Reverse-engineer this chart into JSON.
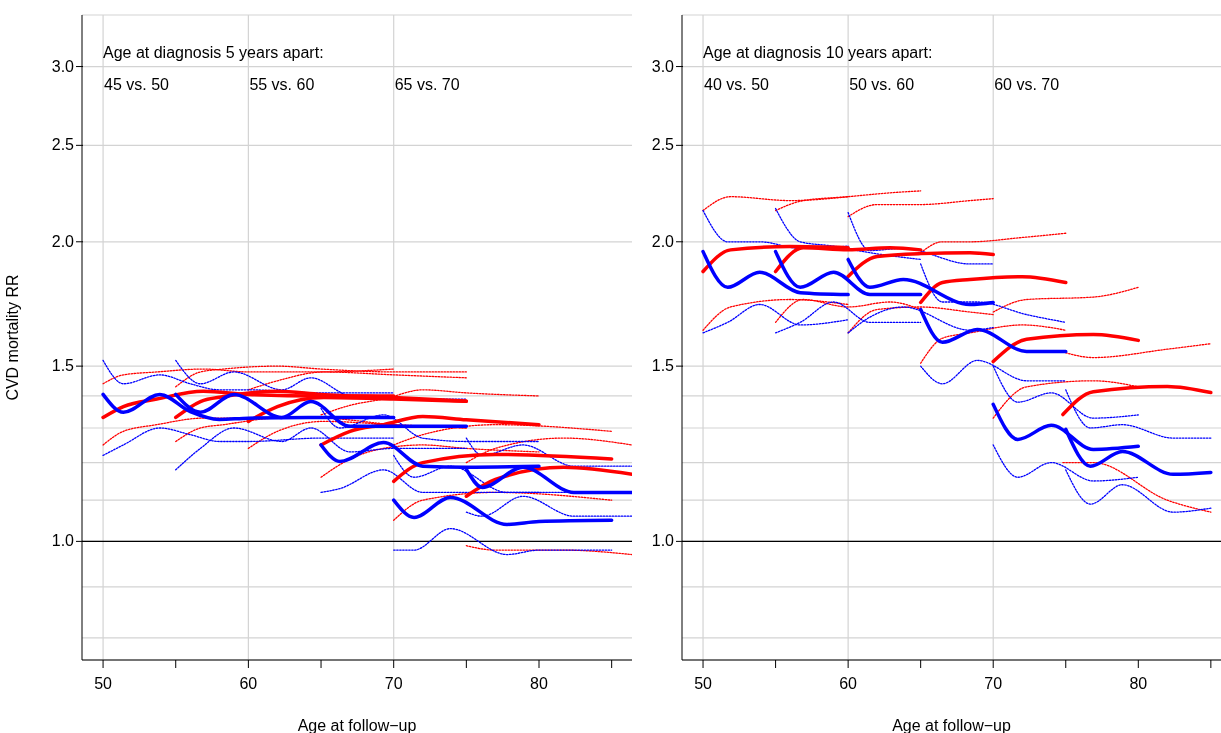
{
  "chart_data": [
    {
      "type": "line",
      "ylabel": "CVD mortality RR",
      "xlabel": "Age at follow−up",
      "annotations": [
        "Age at diagnosis 5 years apart:"
      ],
      "log": "y",
      "grid": "y",
      "legend": false,
      "xlim": [
        48.55,
        86.4
      ],
      "ylim": [
        0.76,
        3.38
      ],
      "xticks": [
        50,
        {
          "value": 55,
          "label": null
        },
        60,
        {
          "value": 65,
          "label": null
        },
        70,
        {
          "value": 75,
          "label": null
        },
        80,
        {
          "value": 85,
          "label": null
        }
      ],
      "yticks": [
        {
          "value": 0.8,
          "label": null
        },
        {
          "value": 0.9,
          "label": null
        },
        {
          "value": 1,
          "label": "1.0"
        },
        {
          "value": 1.1,
          "label": null
        },
        {
          "value": 1.2,
          "label": null
        },
        {
          "value": 1.3,
          "label": null
        },
        {
          "value": 1.4,
          "label": null
        },
        {
          "value": 1.5,
          "label": "1.5"
        },
        {
          "value": 2,
          "label": "2.0"
        },
        {
          "value": 2.5,
          "label": "2.5"
        },
        {
          "value": 3,
          "label": "3.0"
        }
      ],
      "ref_lines": [
        {
          "axis": "x",
          "value": 50,
          "label": "45 vs. 50",
          "color": "#d3d3d3"
        },
        {
          "axis": "x",
          "value": 60,
          "label": "55 vs. 60",
          "color": "#d3d3d3"
        },
        {
          "axis": "x",
          "value": 70,
          "label": "65 vs. 70",
          "color": "#d3d3d3"
        },
        {
          "axis": "y",
          "value": 1,
          "color": "#000000"
        }
      ],
      "series": [
        {
          "color": "#ff0000",
          "line_style": "dotted",
          "x": [
            50,
            51.4,
            53.7,
            56.9,
            60,
            65,
            70
          ],
          "values": [
            1.44,
            1.47,
            1.48,
            1.49,
            1.48,
            1.48,
            1.49
          ]
        },
        {
          "color": "#ff0000",
          "line_style": "dotted",
          "x": [
            50,
            51.4,
            53.7,
            56.9,
            60,
            65,
            70
          ],
          "values": [
            1.25,
            1.29,
            1.31,
            1.33,
            1.33,
            1.33,
            1.33
          ]
        },
        {
          "color": "#ff0000",
          "line_style": "dotted",
          "x": [
            55,
            56.7,
            58.3,
            62,
            65,
            70,
            75
          ],
          "values": [
            1.43,
            1.48,
            1.49,
            1.5,
            1.49,
            1.48,
            1.48
          ]
        },
        {
          "color": "#ff0000",
          "line_style": "dotted",
          "x": [
            55,
            56.7,
            58.3,
            62,
            65,
            70,
            75
          ],
          "values": [
            1.26,
            1.3,
            1.31,
            1.33,
            1.33,
            1.31,
            1.3
          ]
        },
        {
          "color": "#ff0000",
          "line_style": "dotted",
          "x": [
            60,
            62,
            65.2,
            70,
            75
          ],
          "values": [
            1.42,
            1.45,
            1.48,
            1.47,
            1.46
          ]
        },
        {
          "color": "#ff0000",
          "line_style": "dotted",
          "x": [
            60,
            62,
            65.2,
            70,
            75
          ],
          "values": [
            1.24,
            1.29,
            1.32,
            1.31,
            1.3
          ]
        },
        {
          "color": "#ff0000",
          "line_style": "dotted",
          "x": [
            65,
            67,
            69.3,
            72,
            75,
            80
          ],
          "values": [
            1.34,
            1.37,
            1.39,
            1.42,
            1.41,
            1.4
          ]
        },
        {
          "color": "#ff0000",
          "line_style": "dotted",
          "x": [
            65,
            67,
            69.3,
            72,
            75,
            80
          ],
          "values": [
            1.16,
            1.21,
            1.24,
            1.25,
            1.24,
            1.23
          ]
        },
        {
          "color": "#ff0000",
          "line_style": "dotted",
          "x": [
            70,
            72,
            77,
            85
          ],
          "values": [
            1.25,
            1.28,
            1.31,
            1.29
          ]
        },
        {
          "color": "#ff0000",
          "line_style": "dotted",
          "x": [
            70,
            72,
            77,
            85
          ],
          "values": [
            1.05,
            1.1,
            1.12,
            1.1
          ]
        },
        {
          "color": "#ff0000",
          "line_style": "dotted",
          "x": [
            75,
            77,
            81.7,
            86.4
          ],
          "values": [
            1.2,
            1.24,
            1.27,
            1.25
          ]
        },
        {
          "color": "#ff0000",
          "line_style": "dotted",
          "x": [
            75,
            77,
            81.7,
            86.4
          ],
          "values": [
            0.99,
            0.98,
            0.98,
            0.97
          ]
        },
        {
          "color": "#0000ff",
          "line_style": "dotted",
          "x": [
            50,
            51.4,
            53.9,
            56,
            58,
            60,
            65,
            70
          ],
          "values": [
            1.52,
            1.44,
            1.47,
            1.44,
            1.42,
            1.42,
            1.41,
            1.41
          ]
        },
        {
          "color": "#0000ff",
          "line_style": "dotted",
          "x": [
            50,
            51.4,
            53.9,
            56,
            58,
            60,
            65,
            70
          ],
          "values": [
            1.22,
            1.25,
            1.3,
            1.28,
            1.26,
            1.26,
            1.27,
            1.27
          ]
        },
        {
          "color": "#0000ff",
          "line_style": "dotted",
          "x": [
            55,
            56.7,
            59,
            62.3,
            64.3,
            67,
            70,
            75
          ],
          "values": [
            1.52,
            1.44,
            1.48,
            1.42,
            1.46,
            1.4,
            1.39,
            1.39
          ]
        },
        {
          "color": "#0000ff",
          "line_style": "dotted",
          "x": [
            55,
            56.7,
            59,
            62.3,
            64.3,
            67,
            70,
            75
          ],
          "values": [
            1.18,
            1.24,
            1.3,
            1.26,
            1.3,
            1.23,
            1.24,
            1.24
          ]
        },
        {
          "color": "#0000ff",
          "line_style": "dotted",
          "x": [
            65,
            66.3,
            69.3,
            72,
            75,
            80
          ],
          "values": [
            1.36,
            1.3,
            1.34,
            1.27,
            1.26,
            1.26
          ]
        },
        {
          "color": "#0000ff",
          "line_style": "dotted",
          "x": [
            65,
            66.3,
            69.3,
            72,
            75,
            80
          ],
          "values": [
            1.12,
            1.13,
            1.18,
            1.12,
            1.12,
            1.12
          ]
        },
        {
          "color": "#0000ff",
          "line_style": "dotted",
          "x": [
            70,
            71.4,
            73.9,
            77.8,
            80,
            85
          ],
          "values": [
            1.22,
            1.16,
            1.19,
            1.12,
            1.12,
            1.12
          ]
        },
        {
          "color": "#0000ff",
          "line_style": "dotted",
          "x": [
            70,
            71.4,
            73.9,
            77.8,
            80,
            85
          ],
          "values": [
            0.98,
            0.98,
            1.03,
            0.97,
            0.98,
            0.98
          ]
        },
        {
          "color": "#0000ff",
          "line_style": "dotted",
          "x": [
            75,
            76.1,
            78.9,
            82.4,
            86.4
          ],
          "values": [
            1.27,
            1.22,
            1.25,
            1.19,
            1.19
          ]
        },
        {
          "color": "#0000ff",
          "line_style": "dotted",
          "x": [
            75,
            76.1,
            78.9,
            82.4,
            86.4
          ],
          "values": [
            1.07,
            1.06,
            1.11,
            1.06,
            1.06
          ]
        },
        {
          "color": "#ff0000",
          "x": [
            50,
            51.4,
            53.7,
            56.9,
            60,
            65,
            70
          ],
          "values": [
            1.332,
            1.366,
            1.39,
            1.415,
            1.405,
            1.4,
            1.4
          ]
        },
        {
          "color": "#ff0000",
          "x": [
            55,
            56.7,
            58.3,
            62,
            65,
            70,
            75
          ],
          "values": [
            1.332,
            1.382,
            1.398,
            1.415,
            1.405,
            1.395,
            1.383
          ]
        },
        {
          "color": "#ff0000",
          "x": [
            60,
            62,
            65.2,
            70,
            75
          ],
          "values": [
            1.32,
            1.366,
            1.395,
            1.39,
            1.383
          ]
        },
        {
          "color": "#ff0000",
          "x": [
            65,
            67,
            69.3,
            72,
            75,
            80
          ],
          "values": [
            1.25,
            1.29,
            1.31,
            1.335,
            1.325,
            1.31
          ]
        },
        {
          "color": "#ff0000",
          "x": [
            70,
            72,
            77,
            85
          ],
          "values": [
            1.149,
            1.2,
            1.223,
            1.21
          ]
        },
        {
          "color": "#ff0000",
          "x": [
            75,
            77,
            81.7,
            86.4
          ],
          "values": [
            1.11,
            1.154,
            1.187,
            1.168
          ]
        },
        {
          "color": "#0000ff",
          "x": [
            50,
            51.4,
            53.9,
            56,
            58,
            60,
            65,
            70
          ],
          "values": [
            1.405,
            1.348,
            1.405,
            1.35,
            1.326,
            1.33,
            1.332,
            1.332
          ]
        },
        {
          "color": "#0000ff",
          "x": [
            55,
            56.7,
            59,
            62.3,
            64.3,
            67,
            70,
            75
          ],
          "values": [
            1.405,
            1.348,
            1.405,
            1.332,
            1.382,
            1.305,
            1.305,
            1.305
          ]
        },
        {
          "color": "#0000ff",
          "x": [
            65,
            66.3,
            69.3,
            72,
            75,
            80
          ],
          "values": [
            1.25,
            1.203,
            1.257,
            1.19,
            1.187,
            1.19
          ]
        },
        {
          "color": "#0000ff",
          "x": [
            70,
            71.4,
            73.9,
            77.8,
            80,
            85
          ],
          "values": [
            1.1,
            1.057,
            1.107,
            1.04,
            1.047,
            1.05
          ]
        },
        {
          "color": "#0000ff",
          "x": [
            75,
            76.1,
            78.9,
            82.4,
            86.4
          ],
          "values": [
            1.181,
            1.133,
            1.187,
            1.12,
            1.12
          ]
        }
      ]
    },
    {
      "type": "line",
      "xlabel": "Age at follow−up",
      "annotations": [
        "Age at diagnosis 10 years apart:"
      ],
      "log": "y",
      "grid": "y",
      "legend": false,
      "xlim": [
        48.55,
        85.7
      ],
      "ylim": [
        0.76,
        3.38
      ],
      "xticks": [
        50,
        {
          "value": 55,
          "label": null
        },
        60,
        {
          "value": 65,
          "label": null
        },
        70,
        {
          "value": 75,
          "label": null
        },
        80,
        {
          "value": 85,
          "label": null
        }
      ],
      "yticks": [
        {
          "value": 0.8,
          "label": null
        },
        {
          "value": 0.9,
          "label": null
        },
        {
          "value": 1,
          "label": "1.0"
        },
        {
          "value": 1.1,
          "label": null
        },
        {
          "value": 1.2,
          "label": null
        },
        {
          "value": 1.3,
          "label": null
        },
        {
          "value": 1.4,
          "label": null
        },
        {
          "value": 1.5,
          "label": "1.5"
        },
        {
          "value": 2,
          "label": "2.0"
        },
        {
          "value": 2.5,
          "label": "2.5"
        },
        {
          "value": 3,
          "label": "3.0"
        }
      ],
      "ref_lines": [
        {
          "axis": "x",
          "value": 50,
          "label": "40 vs. 50",
          "color": "#d3d3d3"
        },
        {
          "axis": "x",
          "value": 60,
          "label": "50 vs. 60",
          "color": "#d3d3d3"
        },
        {
          "axis": "x",
          "value": 70,
          "label": "60 vs. 70",
          "color": "#d3d3d3"
        },
        {
          "axis": "y",
          "value": 1,
          "color": "#000000"
        }
      ],
      "series": [
        {
          "color": "#ff0000",
          "line_style": "dotted",
          "x": [
            50,
            51.9,
            56,
            60
          ],
          "values": [
            2.15,
            2.22,
            2.2,
            2.22
          ]
        },
        {
          "color": "#ff0000",
          "line_style": "dotted",
          "x": [
            50,
            51.9,
            56,
            60
          ],
          "values": [
            1.63,
            1.72,
            1.75,
            1.73
          ]
        },
        {
          "color": "#ff0000",
          "line_style": "dotted",
          "x": [
            55,
            56.9,
            60,
            62.9,
            65
          ],
          "values": [
            2.15,
            2.2,
            2.22,
            2.24,
            2.25
          ]
        },
        {
          "color": "#ff0000",
          "line_style": "dotted",
          "x": [
            55,
            56.9,
            60,
            62.9,
            65
          ],
          "values": [
            1.66,
            1.75,
            1.72,
            1.74,
            1.71
          ]
        },
        {
          "color": "#ff0000",
          "line_style": "dotted",
          "x": [
            60,
            62,
            65,
            68.4,
            70
          ],
          "values": [
            2.12,
            2.18,
            2.18,
            2.2,
            2.21
          ]
        },
        {
          "color": "#ff0000",
          "line_style": "dotted",
          "x": [
            60,
            62,
            65,
            68.4,
            70
          ],
          "values": [
            1.62,
            1.71,
            1.72,
            1.7,
            1.69
          ]
        },
        {
          "color": "#ff0000",
          "line_style": "dotted",
          "x": [
            65,
            66.5,
            68.4,
            72,
            75
          ],
          "values": [
            1.95,
            2,
            2,
            2.02,
            2.04
          ]
        },
        {
          "color": "#ff0000",
          "line_style": "dotted",
          "x": [
            65,
            66.5,
            68.4,
            72,
            75
          ],
          "values": [
            1.51,
            1.6,
            1.62,
            1.65,
            1.63
          ]
        },
        {
          "color": "#ff0000",
          "line_style": "dotted",
          "x": [
            70,
            72.3,
            76.9,
            80
          ],
          "values": [
            1.7,
            1.75,
            1.76,
            1.8
          ]
        },
        {
          "color": "#ff0000",
          "line_style": "dotted",
          "x": [
            70,
            72.3,
            76.9,
            80
          ],
          "values": [
            1.33,
            1.43,
            1.45,
            1.43
          ]
        },
        {
          "color": "#ff0000",
          "line_style": "dotted",
          "x": [
            74.8,
            76.9,
            82,
            85
          ],
          "values": [
            1.55,
            1.53,
            1.56,
            1.58
          ]
        },
        {
          "color": "#ff0000",
          "line_style": "dotted",
          "x": [
            74.8,
            76.9,
            82,
            85
          ],
          "values": [
            1.2,
            1.2,
            1.1,
            1.07
          ]
        },
        {
          "color": "#0000ff",
          "line_style": "dotted",
          "x": [
            50,
            51.7,
            53.9,
            56.7,
            60
          ],
          "values": [
            2.15,
            2,
            2,
            1.97,
            1.98
          ]
        },
        {
          "color": "#0000ff",
          "line_style": "dotted",
          "x": [
            50,
            51.7,
            53.9,
            56.7,
            60
          ],
          "values": [
            1.62,
            1.66,
            1.73,
            1.65,
            1.67
          ]
        },
        {
          "color": "#0000ff",
          "line_style": "dotted",
          "x": [
            55,
            56.7,
            59,
            61.5,
            65
          ],
          "values": [
            2.16,
            2,
            1.98,
            1.95,
            1.92
          ]
        },
        {
          "color": "#0000ff",
          "line_style": "dotted",
          "x": [
            55,
            56.7,
            59,
            61.5,
            65
          ],
          "values": [
            1.62,
            1.66,
            1.74,
            1.66,
            1.66
          ]
        },
        {
          "color": "#0000ff",
          "line_style": "dotted",
          "x": [
            60,
            61.5,
            63.8,
            68.4,
            70
          ],
          "values": [
            2.14,
            1.96,
            1.97,
            1.9,
            1.9
          ]
        },
        {
          "color": "#0000ff",
          "line_style": "dotted",
          "x": [
            60,
            61.5,
            63.8,
            68.4,
            70
          ],
          "values": [
            1.62,
            1.68,
            1.72,
            1.63,
            1.64
          ]
        },
        {
          "color": "#0000ff",
          "line_style": "dotted",
          "x": [
            65,
            66.5,
            68.9,
            72.3,
            75
          ],
          "values": [
            1.9,
            1.74,
            1.74,
            1.69,
            1.66
          ]
        },
        {
          "color": "#0000ff",
          "line_style": "dotted",
          "x": [
            65,
            66.5,
            68.9,
            72.3,
            75
          ],
          "values": [
            1.5,
            1.44,
            1.52,
            1.45,
            1.45
          ]
        },
        {
          "color": "#0000ff",
          "line_style": "dotted",
          "x": [
            70,
            71.7,
            74,
            76.9,
            80
          ],
          "values": [
            1.5,
            1.38,
            1.41,
            1.33,
            1.34
          ]
        },
        {
          "color": "#0000ff",
          "line_style": "dotted",
          "x": [
            70,
            71.7,
            74,
            76.9,
            80
          ],
          "values": [
            1.25,
            1.16,
            1.2,
            1.15,
            1.16
          ]
        },
        {
          "color": "#0000ff",
          "line_style": "dotted",
          "x": [
            75,
            76.7,
            78.9,
            82.4,
            85
          ],
          "values": [
            1.42,
            1.3,
            1.31,
            1.27,
            1.27
          ]
        },
        {
          "color": "#0000ff",
          "line_style": "dotted",
          "x": [
            75,
            76.7,
            78.9,
            82.4,
            85
          ],
          "values": [
            1.18,
            1.09,
            1.14,
            1.07,
            1.08
          ]
        },
        {
          "color": "#ff0000",
          "x": [
            50,
            51.9,
            56,
            60
          ],
          "values": [
            1.867,
            1.963,
            1.978,
            1.973
          ]
        },
        {
          "color": "#ff0000",
          "x": [
            55,
            56.9,
            60,
            62.9,
            65
          ],
          "values": [
            1.867,
            1.973,
            1.963,
            1.973,
            1.963
          ]
        },
        {
          "color": "#ff0000",
          "x": [
            60,
            62,
            65,
            68.4,
            70
          ],
          "values": [
            1.846,
            1.933,
            1.946,
            1.95,
            1.942
          ]
        },
        {
          "color": "#ff0000",
          "x": [
            65,
            66.5,
            68.4,
            72,
            75
          ],
          "values": [
            1.738,
            1.82,
            1.833,
            1.845,
            1.82
          ]
        },
        {
          "color": "#ff0000",
          "x": [
            70,
            72.3,
            76.9,
            80
          ],
          "values": [
            1.516,
            1.596,
            1.614,
            1.592
          ]
        },
        {
          "color": "#ff0000",
          "x": [
            74.8,
            76.9,
            82,
            85
          ],
          "values": [
            1.341,
            1.414,
            1.431,
            1.411
          ]
        },
        {
          "color": "#0000ff",
          "x": [
            50,
            51.7,
            53.9,
            56.7,
            60
          ],
          "values": [
            1.955,
            1.8,
            1.864,
            1.778,
            1.77
          ]
        },
        {
          "color": "#0000ff",
          "x": [
            55,
            56.7,
            59,
            61.5,
            65
          ],
          "values": [
            1.955,
            1.8,
            1.864,
            1.77,
            1.77
          ]
        },
        {
          "color": "#0000ff",
          "x": [
            60,
            61.5,
            63.8,
            68.4,
            70
          ],
          "values": [
            1.92,
            1.8,
            1.833,
            1.73,
            1.738
          ]
        },
        {
          "color": "#0000ff",
          "x": [
            65,
            66.5,
            68.9,
            72.3,
            75
          ],
          "values": [
            1.71,
            1.585,
            1.633,
            1.552,
            1.552
          ]
        },
        {
          "color": "#0000ff",
          "x": [
            70,
            71.7,
            74,
            76.9,
            80
          ],
          "values": [
            1.373,
            1.266,
            1.308,
            1.237,
            1.246
          ]
        },
        {
          "color": "#0000ff",
          "x": [
            75,
            76.7,
            78.9,
            82.4,
            85
          ],
          "values": [
            1.296,
            1.19,
            1.231,
            1.168,
            1.173
          ]
        }
      ]
    }
  ]
}
